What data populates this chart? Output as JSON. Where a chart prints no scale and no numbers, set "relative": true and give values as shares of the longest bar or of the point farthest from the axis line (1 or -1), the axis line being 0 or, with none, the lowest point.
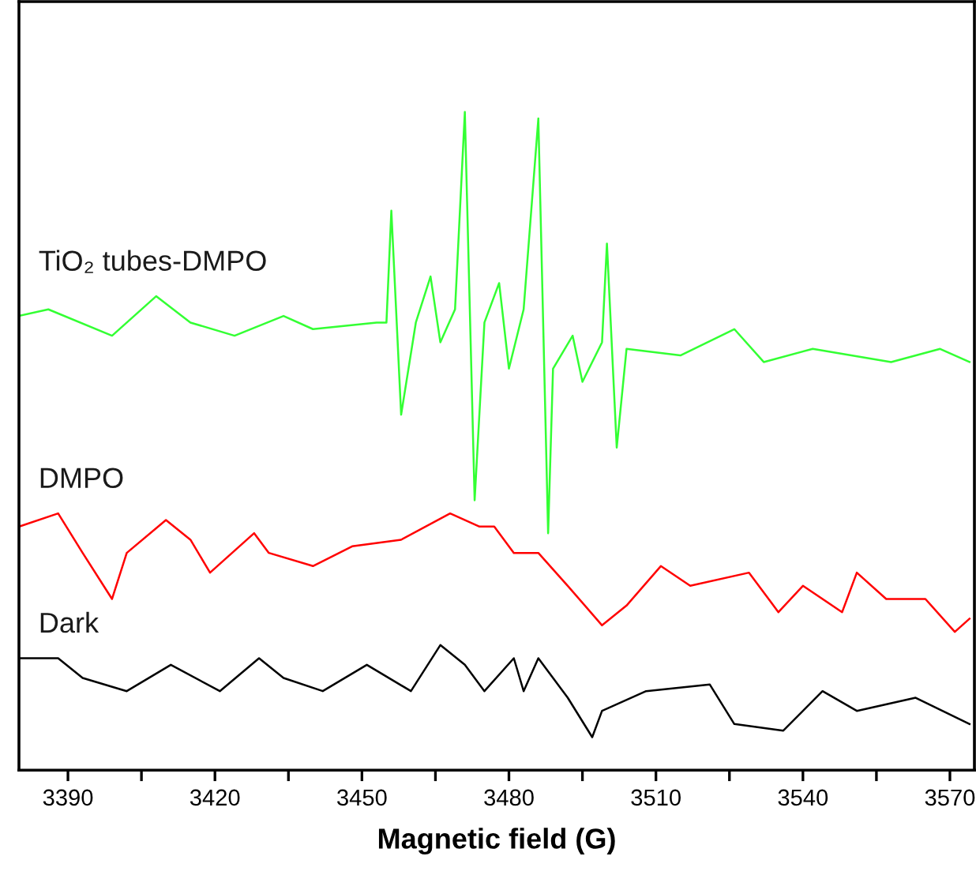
{
  "chart_data": {
    "type": "line",
    "relative": true,
    "xlabel": "Magnetic field (G)",
    "xlim": [
      3380,
      3575
    ],
    "xticks": [
      3390,
      {
        "value": 3405,
        "label": null
      },
      3420,
      {
        "value": 3435,
        "label": null
      },
      3450,
      {
        "value": 3465,
        "label": null
      },
      3480,
      {
        "value": 3495,
        "label": null
      },
      3510,
      {
        "value": 3525,
        "label": null
      },
      3540,
      {
        "value": 3555,
        "label": null
      },
      3570
    ],
    "tick_labels": "x",
    "grid": false,
    "legend": false,
    "marker": "none",
    "line_style": "solid",
    "series": [
      {
        "name": "TiO₂ tubes-DMPO",
        "color": "#33ff33",
        "x": [
          3380,
          3386,
          3399,
          3408,
          3415,
          3424,
          3434,
          3440,
          3453,
          3455,
          3456,
          3458,
          3461,
          3464,
          3466,
          3469,
          3471,
          3473,
          3475,
          3478,
          3480,
          3483,
          3486,
          3488,
          3489,
          3493,
          3495,
          3499,
          3500,
          3502,
          3504,
          3515,
          3526,
          3532,
          3542,
          3558,
          3568,
          3574
        ],
        "values": [
          0.69,
          0.7,
          0.66,
          0.72,
          0.68,
          0.66,
          0.69,
          0.67,
          0.68,
          0.68,
          0.85,
          0.54,
          0.68,
          0.75,
          0.65,
          0.7,
          1.0,
          0.41,
          0.68,
          0.74,
          0.61,
          0.7,
          0.99,
          0.36,
          0.61,
          0.66,
          0.59,
          0.65,
          0.8,
          0.49,
          0.64,
          0.63,
          0.67,
          0.62,
          0.64,
          0.62,
          0.64,
          0.62
        ]
      },
      {
        "name": "DMPO",
        "color": "#ff0000",
        "x": [
          3380,
          3388,
          3393,
          3399,
          3402,
          3410,
          3415,
          3419,
          3428,
          3431,
          3440,
          3448,
          3458,
          3468,
          3474,
          3477,
          3481,
          3486,
          3492,
          3499,
          3504,
          3511,
          3517,
          3529,
          3535,
          3540,
          3548,
          3551,
          3557,
          3565,
          3571,
          3574
        ],
        "values": [
          0.37,
          0.39,
          0.33,
          0.26,
          0.33,
          0.38,
          0.35,
          0.3,
          0.36,
          0.33,
          0.31,
          0.34,
          0.35,
          0.39,
          0.37,
          0.37,
          0.33,
          0.33,
          0.28,
          0.22,
          0.25,
          0.31,
          0.28,
          0.3,
          0.24,
          0.28,
          0.24,
          0.3,
          0.26,
          0.26,
          0.21,
          0.23
        ]
      },
      {
        "name": "Dark",
        "color": "#000000",
        "x": [
          3380,
          3388,
          3393,
          3402,
          3411,
          3421,
          3429,
          3434,
          3442,
          3451,
          3460,
          3466,
          3471,
          3475,
          3481,
          3483,
          3486,
          3492,
          3497,
          3499,
          3508,
          3521,
          3526,
          3536,
          3544,
          3551,
          3563,
          3574
        ],
        "values": [
          0.17,
          0.17,
          0.14,
          0.12,
          0.16,
          0.12,
          0.17,
          0.14,
          0.12,
          0.16,
          0.12,
          0.19,
          0.16,
          0.12,
          0.17,
          0.12,
          0.17,
          0.11,
          0.05,
          0.09,
          0.12,
          0.13,
          0.07,
          0.06,
          0.12,
          0.09,
          0.11,
          0.07
        ]
      }
    ]
  }
}
